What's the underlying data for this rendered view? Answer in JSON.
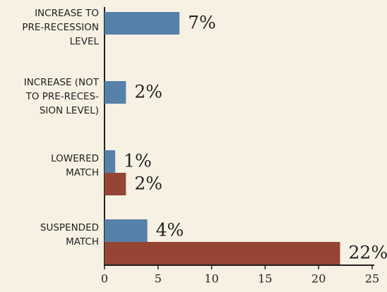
{
  "chart_data": {
    "type": "bar",
    "orientation": "horizontal",
    "categories": [
      "INCREASE TO\nPRE-RECESSION\nLEVEL",
      "INCREASE (NOT\nTO PRE-RECES-\nSION LEVEL)",
      "LOWERED\nMATCH",
      "SUSPENDED\nMATCH"
    ],
    "series": [
      {
        "color": "#5681a9",
        "values": [
          7,
          2,
          1,
          4
        ],
        "value_labels": [
          "7%",
          "2%",
          "1%",
          "4%"
        ]
      },
      {
        "color": "#964434",
        "values": [
          null,
          null,
          2,
          22
        ],
        "value_labels": [
          null,
          null,
          "2%",
          "22%"
        ]
      }
    ],
    "xlim": [
      0,
      25
    ],
    "xticks": [
      0,
      5,
      10,
      15,
      20,
      25
    ]
  }
}
